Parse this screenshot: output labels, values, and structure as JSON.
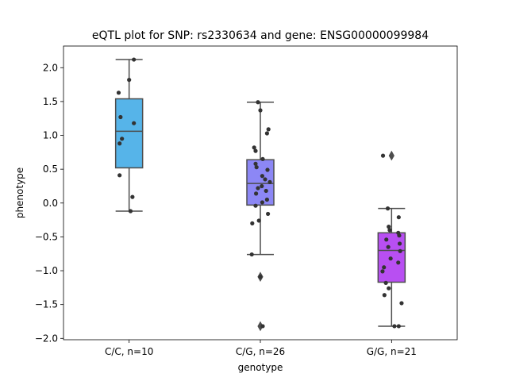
{
  "chart_data": {
    "type": "box",
    "title": "eQTL plot for SNP: rs2330634 and gene: ENSG00000099984",
    "xlabel": "genotype",
    "ylabel": "phenotype",
    "ylim": [
      -2.02,
      2.32
    ],
    "yticks": [
      {
        "value": -2.0,
        "label": "−2.0"
      },
      {
        "value": -1.5,
        "label": "−1.5"
      },
      {
        "value": -1.0,
        "label": "−1.0"
      },
      {
        "value": -0.5,
        "label": "−0.5"
      },
      {
        "value": 0.0,
        "label": "0.0"
      },
      {
        "value": 0.5,
        "label": "0.5"
      },
      {
        "value": 1.0,
        "label": "1.0"
      },
      {
        "value": 1.5,
        "label": "1.5"
      },
      {
        "value": 2.0,
        "label": "2.0"
      }
    ],
    "grid": false,
    "categories": [
      "C/C, n=10",
      "C/G, n=26",
      "G/G, n=21"
    ],
    "groups": [
      {
        "category": "C/C, n=10",
        "color": "#56b4e9",
        "box": {
          "whisker_low": -0.12,
          "q1": 0.52,
          "median": 1.06,
          "q3": 1.54,
          "whisker_high": 2.12
        },
        "outliers": [],
        "points": [
          {
            "jitter": 0.1,
            "y": 2.12
          },
          {
            "jitter": 0.0,
            "y": 1.82
          },
          {
            "jitter": -0.22,
            "y": 1.63
          },
          {
            "jitter": -0.18,
            "y": 1.27
          },
          {
            "jitter": 0.1,
            "y": 1.18
          },
          {
            "jitter": -0.15,
            "y": 0.95
          },
          {
            "jitter": -0.2,
            "y": 0.88
          },
          {
            "jitter": -0.2,
            "y": 0.41
          },
          {
            "jitter": 0.07,
            "y": 0.09
          },
          {
            "jitter": 0.03,
            "y": -0.12
          }
        ]
      },
      {
        "category": "C/G, n=26",
        "color": "#8c87f5",
        "box": {
          "whisker_low": -0.76,
          "q1": -0.03,
          "median": 0.29,
          "q3": 0.64,
          "whisker_high": 1.49
        },
        "outliers": [
          -1.09,
          -1.82
        ],
        "points": [
          {
            "jitter": -0.05,
            "y": 1.49
          },
          {
            "jitter": 0.0,
            "y": 1.37
          },
          {
            "jitter": 0.17,
            "y": 1.09
          },
          {
            "jitter": 0.14,
            "y": 1.03
          },
          {
            "jitter": -0.13,
            "y": 0.82
          },
          {
            "jitter": -0.1,
            "y": 0.77
          },
          {
            "jitter": 0.05,
            "y": 0.65
          },
          {
            "jitter": -0.1,
            "y": 0.58
          },
          {
            "jitter": -0.08,
            "y": 0.53
          },
          {
            "jitter": 0.15,
            "y": 0.49
          },
          {
            "jitter": 0.04,
            "y": 0.4
          },
          {
            "jitter": 0.1,
            "y": 0.35
          },
          {
            "jitter": 0.2,
            "y": 0.31
          },
          {
            "jitter": 0.03,
            "y": 0.25
          },
          {
            "jitter": -0.05,
            "y": 0.22
          },
          {
            "jitter": 0.12,
            "y": 0.18
          },
          {
            "jitter": -0.09,
            "y": 0.14
          },
          {
            "jitter": 0.14,
            "y": 0.05
          },
          {
            "jitter": 0.04,
            "y": 0.01
          },
          {
            "jitter": -0.1,
            "y": -0.04
          },
          {
            "jitter": 0.16,
            "y": -0.16
          },
          {
            "jitter": -0.03,
            "y": -0.26
          },
          {
            "jitter": -0.17,
            "y": -0.3
          },
          {
            "jitter": -0.18,
            "y": -0.76
          },
          {
            "jitter": 0.0,
            "y": -1.09
          },
          {
            "jitter": 0.05,
            "y": -1.82
          }
        ]
      },
      {
        "category": "G/G, n=21",
        "color": "#b84ff2",
        "box": {
          "whisker_low": -1.82,
          "q1": -1.17,
          "median": -0.7,
          "q3": -0.44,
          "whisker_high": -0.08
        },
        "outliers": [
          0.7
        ],
        "points": [
          {
            "jitter": -0.18,
            "y": 0.7
          },
          {
            "jitter": -0.08,
            "y": -0.08
          },
          {
            "jitter": 0.15,
            "y": -0.21
          },
          {
            "jitter": -0.06,
            "y": -0.35
          },
          {
            "jitter": -0.04,
            "y": -0.4
          },
          {
            "jitter": 0.14,
            "y": -0.44
          },
          {
            "jitter": 0.16,
            "y": -0.48
          },
          {
            "jitter": -0.11,
            "y": -0.54
          },
          {
            "jitter": 0.17,
            "y": -0.6
          },
          {
            "jitter": -0.07,
            "y": -0.65
          },
          {
            "jitter": 0.18,
            "y": -0.71
          },
          {
            "jitter": -0.02,
            "y": -0.82
          },
          {
            "jitter": 0.14,
            "y": -0.88
          },
          {
            "jitter": -0.16,
            "y": -0.95
          },
          {
            "jitter": -0.19,
            "y": -1.01
          },
          {
            "jitter": -0.12,
            "y": -1.18
          },
          {
            "jitter": -0.06,
            "y": -1.26
          },
          {
            "jitter": -0.15,
            "y": -1.36
          },
          {
            "jitter": 0.21,
            "y": -1.48
          },
          {
            "jitter": 0.06,
            "y": -1.82
          },
          {
            "jitter": 0.15,
            "y": -1.82
          }
        ]
      }
    ]
  }
}
